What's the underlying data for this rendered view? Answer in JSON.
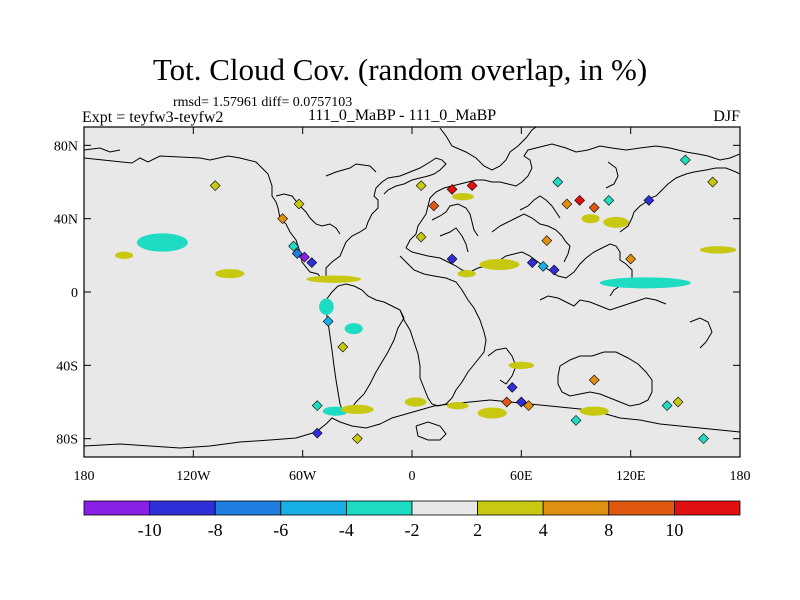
{
  "title": "Tot. Cloud Cov. (random overlap, in %)",
  "stats": "rmsd= 1.57961 diff= 0.0757103",
  "experiment": "Expt = teyfw3-teyfw2",
  "subtitle": "111_0_MaBP - 111_0_MaBP",
  "season": "DJF",
  "chart_data": {
    "type": "heatmap",
    "xlabels": [
      "180",
      "120W",
      "60W",
      "0",
      "60E",
      "120E",
      "180"
    ],
    "ylabels": [
      "80N",
      "40N",
      "0",
      "40S",
      "80S"
    ],
    "xlim": [
      -180,
      180
    ],
    "ylim": [
      -90,
      90
    ],
    "colorbar": {
      "labels": [
        "-10",
        "-8",
        "-6",
        "-4",
        "-2",
        "2",
        "4",
        "8",
        "10"
      ],
      "colors": [
        "#8a20e6",
        "#2f2fd8",
        "#1f7fe0",
        "#18aee6",
        "#1edcc4",
        "#e8e8e8",
        "#c8c810",
        "#e09010",
        "#e05810",
        "#e01010"
      ]
    },
    "anomalies": [
      {
        "lon": -137,
        "lat": 27,
        "category": 4,
        "type": "blob",
        "w": 28,
        "h": 10
      },
      {
        "lon": -158,
        "lat": 20,
        "category": 6,
        "type": "blob",
        "w": 10,
        "h": 4
      },
      {
        "lon": -100,
        "lat": 10,
        "category": 6,
        "type": "blob",
        "w": 16,
        "h": 5
      },
      {
        "lon": -108,
        "lat": 58,
        "category": 6,
        "type": "dot"
      },
      {
        "lon": -62,
        "lat": 48,
        "category": 6,
        "type": "dot"
      },
      {
        "lon": -71,
        "lat": 40,
        "category": 7,
        "type": "dot"
      },
      {
        "lon": -65,
        "lat": 25,
        "category": 4,
        "type": "dot"
      },
      {
        "lon": -63,
        "lat": 21,
        "category": 2,
        "type": "dot"
      },
      {
        "lon": -59,
        "lat": 19,
        "category": 0,
        "type": "dot"
      },
      {
        "lon": -55,
        "lat": 16,
        "category": 1,
        "type": "dot"
      },
      {
        "lon": -43,
        "lat": 7,
        "category": 6,
        "type": "blob",
        "w": 30,
        "h": 4
      },
      {
        "lon": -47,
        "lat": -8,
        "category": 4,
        "type": "blob",
        "w": 8,
        "h": 9
      },
      {
        "lon": -46,
        "lat": -16,
        "category": 3,
        "type": "dot"
      },
      {
        "lon": -32,
        "lat": -20,
        "category": 4,
        "type": "blob",
        "w": 10,
        "h": 6
      },
      {
        "lon": -38,
        "lat": -30,
        "category": 6,
        "type": "dot"
      },
      {
        "lon": -52,
        "lat": -62,
        "category": 4,
        "type": "dot"
      },
      {
        "lon": -42,
        "lat": -65,
        "category": 4,
        "type": "blob",
        "w": 14,
        "h": 5
      },
      {
        "lon": -30,
        "lat": -64,
        "category": 6,
        "type": "blob",
        "w": 18,
        "h": 5
      },
      {
        "lon": -52,
        "lat": -77,
        "category": 1,
        "type": "dot"
      },
      {
        "lon": -30,
        "lat": -80,
        "category": 6,
        "type": "dot"
      },
      {
        "lon": 5,
        "lat": 58,
        "category": 6,
        "type": "dot"
      },
      {
        "lon": 12,
        "lat": 47,
        "category": 8,
        "type": "dot"
      },
      {
        "lon": 22,
        "lat": 56,
        "category": 9,
        "type": "dot"
      },
      {
        "lon": 28,
        "lat": 52,
        "category": 6,
        "type": "blob",
        "w": 12,
        "h": 4
      },
      {
        "lon": 33,
        "lat": 58,
        "category": 9,
        "type": "dot"
      },
      {
        "lon": 5,
        "lat": 30,
        "category": 6,
        "type": "dot"
      },
      {
        "lon": 22,
        "lat": 18,
        "category": 1,
        "type": "dot"
      },
      {
        "lon": 48,
        "lat": 15,
        "category": 6,
        "type": "blob",
        "w": 22,
        "h": 6
      },
      {
        "lon": 30,
        "lat": 10,
        "category": 6,
        "type": "blob",
        "w": 10,
        "h": 4
      },
      {
        "lon": 66,
        "lat": 16,
        "category": 1,
        "type": "dot"
      },
      {
        "lon": 72,
        "lat": 14,
        "category": 3,
        "type": "dot"
      },
      {
        "lon": 78,
        "lat": 12,
        "category": 1,
        "type": "dot"
      },
      {
        "lon": 74,
        "lat": 28,
        "category": 7,
        "type": "dot"
      },
      {
        "lon": 85,
        "lat": 48,
        "category": 7,
        "type": "dot"
      },
      {
        "lon": 92,
        "lat": 50,
        "category": 9,
        "type": "dot"
      },
      {
        "lon": 100,
        "lat": 46,
        "category": 8,
        "type": "dot"
      },
      {
        "lon": 108,
        "lat": 50,
        "category": 4,
        "type": "dot"
      },
      {
        "lon": 98,
        "lat": 40,
        "category": 6,
        "type": "blob",
        "w": 10,
        "h": 5
      },
      {
        "lon": 112,
        "lat": 38,
        "category": 6,
        "type": "blob",
        "w": 14,
        "h": 6
      },
      {
        "lon": 80,
        "lat": 60,
        "category": 4,
        "type": "dot"
      },
      {
        "lon": 130,
        "lat": 50,
        "category": 1,
        "type": "dot"
      },
      {
        "lon": 150,
        "lat": 72,
        "category": 4,
        "type": "dot"
      },
      {
        "lon": 165,
        "lat": 60,
        "category": 6,
        "type": "dot"
      },
      {
        "lon": 128,
        "lat": 5,
        "category": 4,
        "type": "blob",
        "w": 50,
        "h": 6
      },
      {
        "lon": 120,
        "lat": 18,
        "category": 7,
        "type": "dot"
      },
      {
        "lon": 168,
        "lat": 23,
        "category": 6,
        "type": "blob",
        "w": 20,
        "h": 4
      },
      {
        "lon": 60,
        "lat": -40,
        "category": 6,
        "type": "blob",
        "w": 14,
        "h": 4
      },
      {
        "lon": 55,
        "lat": -52,
        "category": 1,
        "type": "dot"
      },
      {
        "lon": 60,
        "lat": -60,
        "category": 1,
        "type": "dot"
      },
      {
        "lon": 64,
        "lat": -62,
        "category": 7,
        "type": "dot"
      },
      {
        "lon": 52,
        "lat": -60,
        "category": 8,
        "type": "dot"
      },
      {
        "lon": 44,
        "lat": -66,
        "category": 6,
        "type": "blob",
        "w": 16,
        "h": 6
      },
      {
        "lon": 100,
        "lat": -48,
        "category": 7,
        "type": "dot"
      },
      {
        "lon": 90,
        "lat": -70,
        "category": 4,
        "type": "dot"
      },
      {
        "lon": 100,
        "lat": -65,
        "category": 6,
        "type": "blob",
        "w": 16,
        "h": 5
      },
      {
        "lon": 140,
        "lat": -62,
        "category": 4,
        "type": "dot"
      },
      {
        "lon": 146,
        "lat": -60,
        "category": 6,
        "type": "dot"
      },
      {
        "lon": 160,
        "lat": -80,
        "category": 4,
        "type": "dot"
      },
      {
        "lon": 2,
        "lat": -60,
        "category": 6,
        "type": "blob",
        "w": 12,
        "h": 5
      },
      {
        "lon": 25,
        "lat": -62,
        "category": 6,
        "type": "blob",
        "w": 12,
        "h": 4
      }
    ]
  }
}
